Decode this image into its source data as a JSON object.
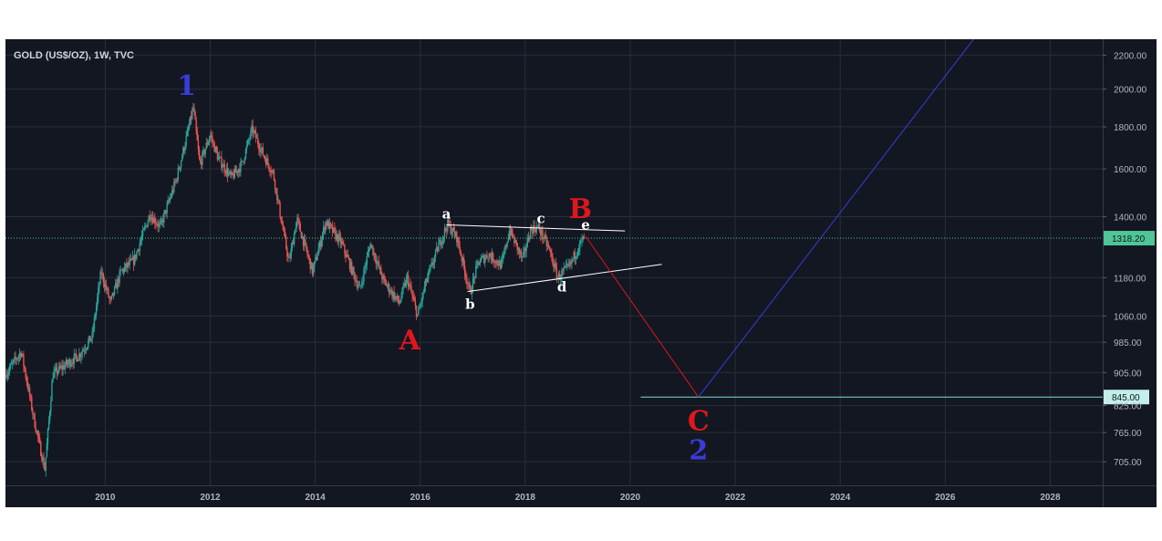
{
  "chart_data": {
    "type": "line",
    "title": "GOLD (US$/OZ), 1W, TVC",
    "symbol": "GOLD (US$/OZ)",
    "interval": "1W",
    "source": "TVC",
    "y_scale": "log",
    "ylim": [
      660,
      2300
    ],
    "xlim": [
      2008.1,
      2029.0
    ],
    "y_ticks": [
      {
        "value": 2200,
        "label": "2200.00"
      },
      {
        "value": 2000,
        "label": "2000.00"
      },
      {
        "value": 1800,
        "label": "1800.00"
      },
      {
        "value": 1600,
        "label": "1600.00"
      },
      {
        "value": 1400,
        "label": "1400.00"
      },
      {
        "value": 1180,
        "label": "1180.00"
      },
      {
        "value": 1060,
        "label": "1060.00"
      },
      {
        "value": 985,
        "label": "985.00"
      },
      {
        "value": 905,
        "label": "905.00"
      },
      {
        "value": 825,
        "label": "825.00"
      },
      {
        "value": 765,
        "label": "765.00"
      },
      {
        "value": 705,
        "label": "705.00"
      }
    ],
    "x_ticks": [
      {
        "value": 2010,
        "label": "2010"
      },
      {
        "value": 2012,
        "label": "2012"
      },
      {
        "value": 2014,
        "label": "2014"
      },
      {
        "value": 2016,
        "label": "2016"
      },
      {
        "value": 2018,
        "label": "2018"
      },
      {
        "value": 2020,
        "label": "2020"
      },
      {
        "value": 2022,
        "label": "2022"
      },
      {
        "value": 2024,
        "label": "2024"
      },
      {
        "value": 2026,
        "label": "2026"
      },
      {
        "value": 2028,
        "label": "2028"
      }
    ],
    "price_path": [
      [
        2008.1,
        900
      ],
      [
        2008.4,
        960
      ],
      [
        2008.65,
        790
      ],
      [
        2008.85,
        690
      ],
      [
        2009.0,
        900
      ],
      [
        2009.2,
        920
      ],
      [
        2009.5,
        950
      ],
      [
        2009.75,
        1000
      ],
      [
        2009.92,
        1200
      ],
      [
        2010.1,
        1100
      ],
      [
        2010.3,
        1200
      ],
      [
        2010.55,
        1240
      ],
      [
        2010.85,
        1410
      ],
      [
        2011.05,
        1360
      ],
      [
        2011.35,
        1550
      ],
      [
        2011.55,
        1750
      ],
      [
        2011.68,
        1900
      ],
      [
        2011.8,
        1620
      ],
      [
        2012.0,
        1760
      ],
      [
        2012.15,
        1650
      ],
      [
        2012.4,
        1560
      ],
      [
        2012.6,
        1620
      ],
      [
        2012.8,
        1790
      ],
      [
        2013.0,
        1670
      ],
      [
        2013.2,
        1580
      ],
      [
        2013.35,
        1390
      ],
      [
        2013.5,
        1230
      ],
      [
        2013.65,
        1390
      ],
      [
        2013.95,
        1200
      ],
      [
        2014.2,
        1380
      ],
      [
        2014.5,
        1300
      ],
      [
        2014.85,
        1140
      ],
      [
        2015.05,
        1300
      ],
      [
        2015.3,
        1170
      ],
      [
        2015.6,
        1100
      ],
      [
        2015.75,
        1180
      ],
      [
        2015.95,
        1060
      ],
      [
        2016.1,
        1160
      ],
      [
        2016.35,
        1290
      ],
      [
        2016.52,
        1370
      ],
      [
        2016.7,
        1320
      ],
      [
        2016.95,
        1130
      ],
      [
        2017.1,
        1230
      ],
      [
        2017.3,
        1260
      ],
      [
        2017.55,
        1220
      ],
      [
        2017.7,
        1350
      ],
      [
        2017.95,
        1240
      ],
      [
        2018.1,
        1350
      ],
      [
        2018.25,
        1360
      ],
      [
        2018.45,
        1280
      ],
      [
        2018.62,
        1180
      ],
      [
        2018.85,
        1220
      ],
      [
        2019.02,
        1290
      ],
      [
        2019.12,
        1318
      ]
    ],
    "last_price": {
      "value": 1318.2,
      "label": "1318.20"
    },
    "support_line": {
      "value": 845,
      "label": "845.00",
      "from_x": 2020.2
    },
    "triangle_upper": {
      "from": [
        2016.5,
        1368
      ],
      "to": [
        2019.9,
        1345
      ]
    },
    "triangle_lower": {
      "from": [
        2016.9,
        1135
      ],
      "to": [
        2020.6,
        1225
      ]
    },
    "projection_down": {
      "from": [
        2019.15,
        1325
      ],
      "to": [
        2021.3,
        845
      ]
    },
    "projection_up": {
      "from": [
        2021.3,
        845
      ],
      "to": [
        2027.1,
        2560
      ]
    },
    "wave_labels": [
      {
        "text": "1",
        "x": 2011.55,
        "y": 2020,
        "color": "#3a3cd6",
        "size": "big"
      },
      {
        "text": "A",
        "x": 2015.8,
        "y": 990,
        "color": "#e0161d",
        "size": "big"
      },
      {
        "text": "B",
        "x": 2019.05,
        "y": 1430,
        "color": "#e0161d",
        "size": "big"
      },
      {
        "text": "C",
        "x": 2021.3,
        "y": 790,
        "color": "#e0161d",
        "size": "big"
      },
      {
        "text": "2",
        "x": 2021.3,
        "y": 728,
        "color": "#3a3cd6",
        "size": "big"
      },
      {
        "text": "a",
        "x": 2016.5,
        "y": 1410,
        "size": "small"
      },
      {
        "text": "b",
        "x": 2016.95,
        "y": 1095,
        "size": "small"
      },
      {
        "text": "c",
        "x": 2018.3,
        "y": 1393,
        "size": "small"
      },
      {
        "text": "d",
        "x": 2018.7,
        "y": 1150,
        "size": "small"
      },
      {
        "text": "e",
        "x": 2019.15,
        "y": 1368,
        "size": "small"
      }
    ],
    "grid": true,
    "legend": "none"
  },
  "colors": {
    "background": "#131722",
    "grid": "#2a2e39",
    "axis_text": "#b2b5be",
    "up_candle": "#26a69a",
    "down_candle": "#ef5350",
    "last_price_line": "#4fc598",
    "last_price_badge": "#4fc598",
    "support_line": "#7ddcd8",
    "support_badge": "#c3eee9",
    "triangle": "#ffffff",
    "projection_down": "#e0161d",
    "projection_up": "#3a3cd6"
  }
}
